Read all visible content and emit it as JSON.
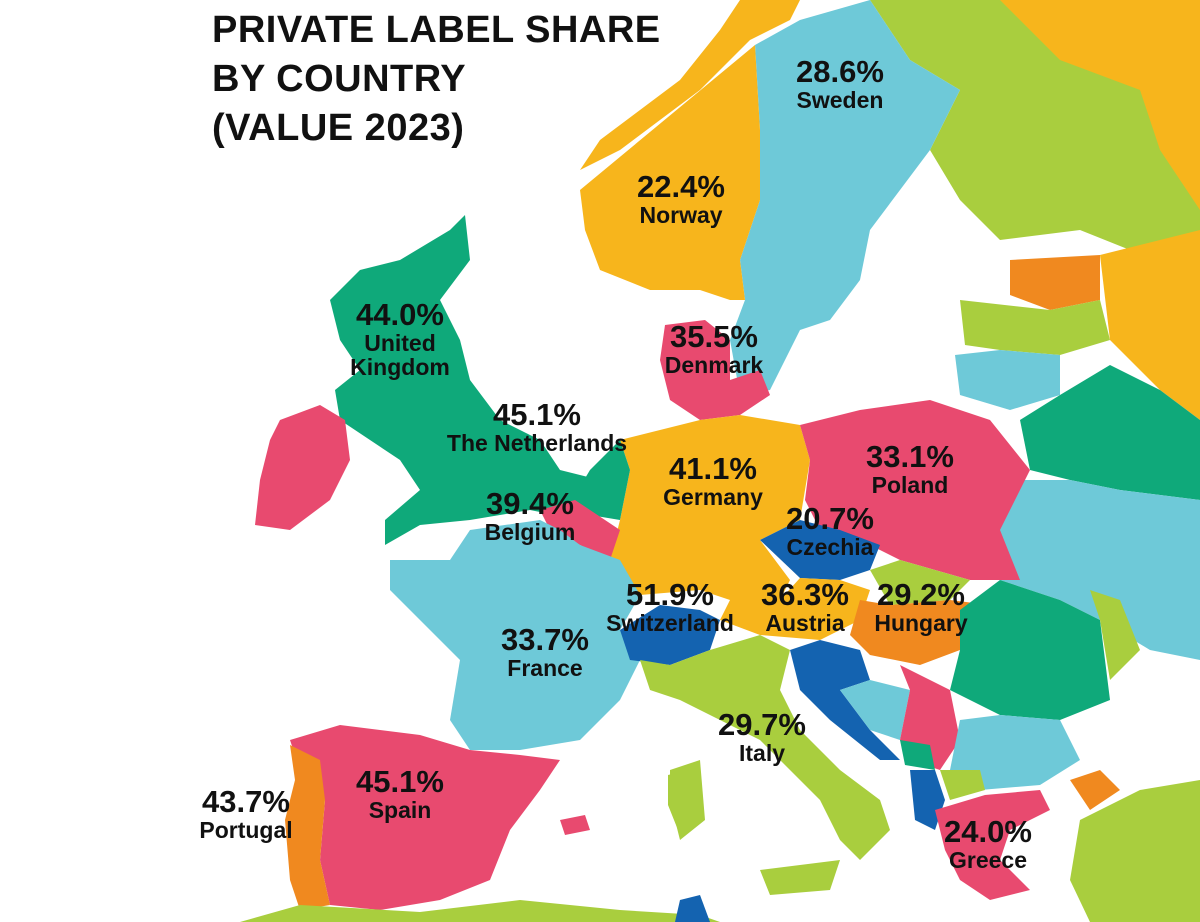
{
  "title_lines": [
    "PRIVATE LABEL SHARE",
    "BY COUNTRY",
    "(VALUE 2023)"
  ],
  "colors": {
    "sea": "#ffffff",
    "pink": "#e84a6f",
    "green": "#0fa97a",
    "orange": "#f7b51c",
    "cyan": "#6ec9d8",
    "blue": "#1463b0",
    "lime": "#a9ce3e",
    "dark_orange": "#f0891f"
  },
  "countries": [
    {
      "name": "Sweden",
      "value": "28.6%"
    },
    {
      "name": "Norway",
      "value": "22.4%"
    },
    {
      "name": "United Kingdom",
      "name_lines": [
        "United",
        "Kingdom"
      ],
      "value": "44.0%"
    },
    {
      "name": "Denmark",
      "value": "35.5%"
    },
    {
      "name": "The Netherlands",
      "value": "45.1%"
    },
    {
      "name": "Germany",
      "value": "41.1%"
    },
    {
      "name": "Poland",
      "value": "33.1%"
    },
    {
      "name": "Belgium",
      "value": "39.4%"
    },
    {
      "name": "Czechia",
      "value": "20.7%"
    },
    {
      "name": "Switzerland",
      "value": "51.9%"
    },
    {
      "name": "Austria",
      "value": "36.3%"
    },
    {
      "name": "Hungary",
      "value": "29.2%"
    },
    {
      "name": "France",
      "value": "33.7%"
    },
    {
      "name": "Italy",
      "value": "29.7%"
    },
    {
      "name": "Portugal",
      "value": "43.7%"
    },
    {
      "name": "Spain",
      "value": "45.1%"
    },
    {
      "name": "Greece",
      "value": "24.0%"
    }
  ]
}
